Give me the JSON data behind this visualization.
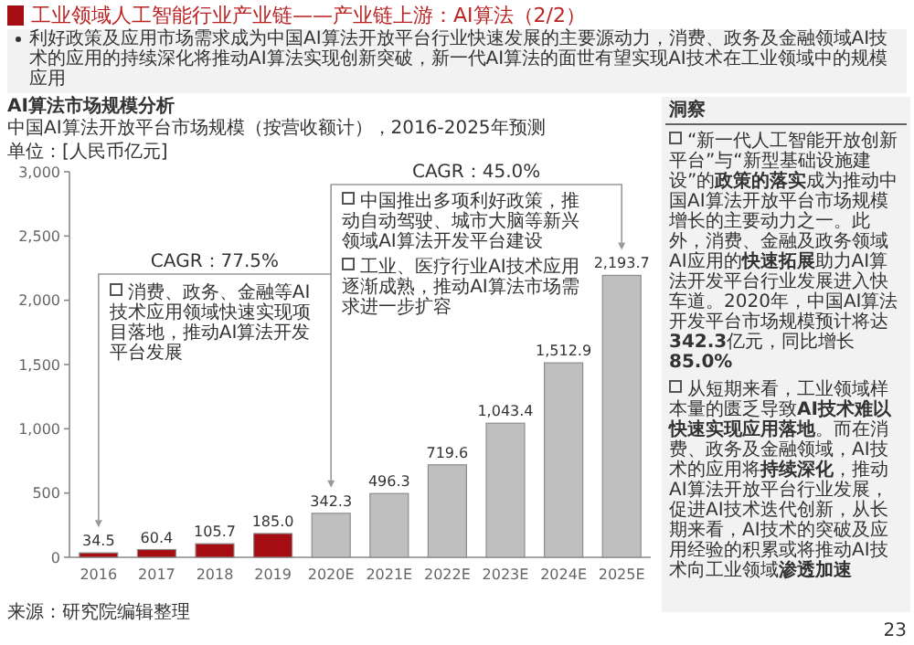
{
  "chart_data": {
    "type": "bar",
    "title": "工业领域人工智能行业产业链——产业链上游：AI算法（2/2）",
    "subtitle": "利好政策及应用市场需求成为中国AI算法开放平台行业快速发展的主要源动力，消费、政务及金融领域AI技术的应用的持续深化将推动AI算法实现创新突破，新一代AI算法的面世有望实现AI技术在工业领域中的规模应用",
    "ylabel": "单位：[人民币亿元]",
    "categories": [
      "2016",
      "2017",
      "2018",
      "2019",
      "2020E",
      "2021E",
      "2022E",
      "2023E",
      "2024E",
      "2025E"
    ],
    "values": [
      34.5,
      60.4,
      105.7,
      185.0,
      342.3,
      496.3,
      719.6,
      1043.4,
      1512.9,
      2193.7
    ],
    "colors": [
      "#a50d12",
      "#a50d12",
      "#a50d12",
      "#a50d12",
      "#bfbfbf",
      "#bfbfbf",
      "#bfbfbf",
      "#bfbfbf",
      "#bfbfbf",
      "#bfbfbf"
    ],
    "value_labels": [
      "34.5",
      "60.4",
      "105.7",
      "185.0",
      "342.3",
      "496.3",
      "719.6",
      "1,043.4",
      "1,512.9",
      "2,193.7"
    ],
    "ylim": [
      0,
      3000
    ],
    "yticks": [
      0,
      500,
      {
        "value": 1000,
        "label": "1,000"
      },
      {
        "value": 1500,
        "label": "1,500"
      },
      {
        "value": 2000,
        "label": "2,000"
      },
      {
        "value": 2500,
        "label": "2,500"
      },
      {
        "value": 3000,
        "label": "3,000"
      }
    ],
    "annotations": [
      "AI算法市场规模分析",
      "中国AI算法开放平台市场规模（按营收额计），2016-2025年预测",
      "CAGR：77.5%",
      "消费、政务、金融等AI技术应用领域快速实现项目落地，推动AI算法开发平台发展",
      "CAGR：45.0%",
      "中国推出多项利好政策，推动自动驾驶、城市大脑等新兴领域AI算法开发平台建设",
      "工业、医疗行业AI技术应用逐渐成熟，推动AI算法市场需求进一步扩容",
      "洞察",
      "“新一代人工智能开放创新平台”与“新型基础设施建设”的**政策的落实**成为推动中国AI算法开放平台市场规模增长的主要动力之一。此外，消费、金融及政务领域AI应用的**快速拓展**助力AI算法开发平台行业发展进入快车道。2020年，中国AI算法开发平台市场规模预计将达**342.3**亿元，同比增长**85.0%**",
      "从短期来看，工业领域样本量的匮乏导致**AI技术难以快速实现应用落地**。而在消费、政务及金融领域，AI技术的应用将**持续深化**，推动AI算法开放平台行业发展，促进AI技术迭代创新，从长期来看，AI技术的突破及应用经验的积累或将推动AI技术向工业领域**渗透加速**",
      "来源：研究院编辑整理",
      "23"
    ]
  }
}
